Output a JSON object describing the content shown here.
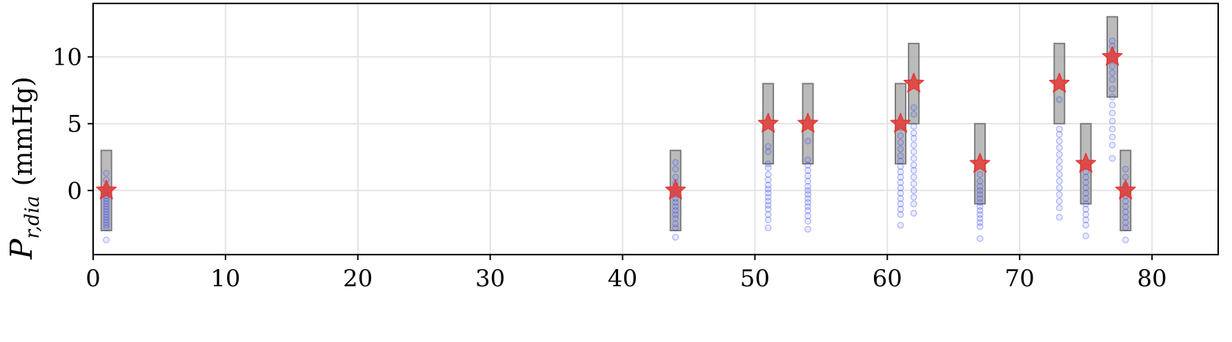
{
  "chart_data": {
    "type": "scatter",
    "ylabel_main": "P",
    "ylabel_sub": "r,dia",
    "ylabel_unit": "(mmHg)",
    "xlim": [
      0,
      85
    ],
    "ylim": [
      -4.8,
      14
    ],
    "xticks": [
      0,
      10,
      20,
      30,
      40,
      50,
      60,
      70,
      80
    ],
    "yticks": [
      0,
      5,
      10
    ],
    "grid": true,
    "colors": {
      "box": "#9e9e9e",
      "star": "#e53935",
      "dots": "#3344ee",
      "grid": "#e3e3e3"
    },
    "ranges": [
      {
        "x": 1,
        "low": -3,
        "high": 3
      },
      {
        "x": 44,
        "low": -3,
        "high": 3
      },
      {
        "x": 51,
        "low": 2,
        "high": 8
      },
      {
        "x": 54,
        "low": 2,
        "high": 8
      },
      {
        "x": 61,
        "low": 2,
        "high": 8
      },
      {
        "x": 62,
        "low": 5,
        "high": 11
      },
      {
        "x": 67,
        "low": -1,
        "high": 5
      },
      {
        "x": 73,
        "low": 5,
        "high": 11
      },
      {
        "x": 75,
        "low": -1,
        "high": 5
      },
      {
        "x": 77,
        "low": 7,
        "high": 13
      },
      {
        "x": 78,
        "low": -3,
        "high": 3
      }
    ],
    "targets": [
      {
        "x": 1,
        "y": 0
      },
      {
        "x": 44,
        "y": 0
      },
      {
        "x": 51,
        "y": 5
      },
      {
        "x": 54,
        "y": 5
      },
      {
        "x": 61,
        "y": 5
      },
      {
        "x": 62,
        "y": 8
      },
      {
        "x": 67,
        "y": 2
      },
      {
        "x": 73,
        "y": 8
      },
      {
        "x": 75,
        "y": 2
      },
      {
        "x": 77,
        "y": 10
      },
      {
        "x": 78,
        "y": 0
      }
    ],
    "samples": [
      {
        "x": 1,
        "values": [
          1.3,
          0.8,
          0.3,
          0.0,
          -0.2,
          -0.4,
          -0.6,
          -0.8,
          -1.0,
          -1.2,
          -1.4,
          -1.6,
          -1.8,
          -2.0,
          -2.2,
          -2.4,
          -2.6,
          -2.8,
          -3.7
        ]
      },
      {
        "x": 44,
        "values": [
          2.1,
          1.6,
          1.0,
          0.6,
          0.3,
          0.0,
          -0.3,
          -0.6,
          -0.9,
          -1.2,
          -1.5,
          -1.8,
          -2.1,
          -2.5,
          -2.8,
          -3.5
        ]
      },
      {
        "x": 51,
        "values": [
          3.3,
          2.9,
          2.0,
          1.7,
          1.2,
          0.8,
          0.4,
          0.1,
          -0.2,
          -0.5,
          -0.8,
          -1.1,
          -1.4,
          -1.8,
          -2.2,
          -2.8
        ]
      },
      {
        "x": 54,
        "values": [
          3.7,
          2.3,
          1.9,
          1.5,
          1.1,
          0.7,
          0.3,
          0.0,
          -0.3,
          -0.6,
          -0.9,
          -1.2,
          -1.5,
          -1.9,
          -2.3,
          -2.9
        ]
      },
      {
        "x": 61,
        "values": [
          4.7,
          4.1,
          3.6,
          3.1,
          2.6,
          2.2,
          1.8,
          1.4,
          1.0,
          0.6,
          0.2,
          -0.2,
          -0.6,
          -1.0,
          -1.4,
          -1.8,
          -2.6
        ]
      },
      {
        "x": 62,
        "values": [
          6.2,
          5.7,
          4.8,
          4.3,
          3.9,
          3.4,
          2.9,
          2.4,
          1.9,
          1.5,
          1.0,
          0.5,
          0.0,
          -0.5,
          -1.0,
          -1.7
        ]
      },
      {
        "x": 67,
        "values": [
          1.2,
          0.7,
          0.3,
          0.0,
          -0.3,
          -0.6,
          -0.9,
          -1.2,
          -1.5,
          -1.8,
          -2.1,
          -2.4,
          -2.7,
          -3.6
        ]
      },
      {
        "x": 73,
        "values": [
          6.8,
          4.6,
          4.2,
          3.7,
          3.2,
          2.7,
          2.2,
          1.7,
          1.2,
          0.7,
          0.2,
          -0.3,
          -0.8,
          -1.3,
          -2.0
        ]
      },
      {
        "x": 75,
        "values": [
          1.8,
          1.4,
          1.0,
          0.6,
          0.2,
          -0.2,
          -0.6,
          -1.0,
          -1.4,
          -1.8,
          -2.2,
          -2.6,
          -3.4
        ]
      },
      {
        "x": 77,
        "values": [
          11.2,
          10.8,
          10.3,
          9.8,
          9.3,
          8.8,
          8.3,
          7.6,
          7.0,
          6.4,
          5.8,
          5.2,
          4.6,
          4.0,
          3.4,
          2.4
        ]
      },
      {
        "x": 78,
        "values": [
          1.6,
          1.0,
          0.4,
          0.0,
          -0.4,
          -0.8,
          -1.2,
          -1.6,
          -2.0,
          -2.4,
          -2.8,
          -3.7
        ]
      }
    ]
  }
}
